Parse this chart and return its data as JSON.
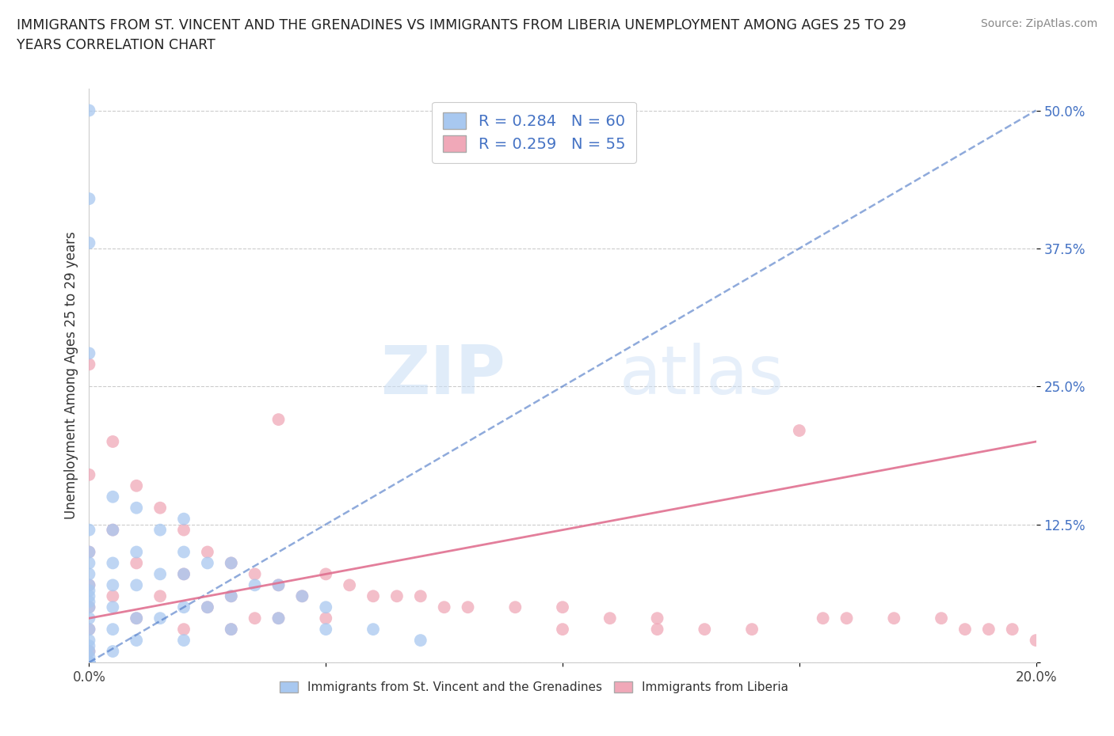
{
  "title_line1": "IMMIGRANTS FROM ST. VINCENT AND THE GRENADINES VS IMMIGRANTS FROM LIBERIA UNEMPLOYMENT AMONG AGES 25 TO 29",
  "title_line2": "YEARS CORRELATION CHART",
  "source": "Source: ZipAtlas.com",
  "ylabel": "Unemployment Among Ages 25 to 29 years",
  "xlim": [
    0.0,
    0.2
  ],
  "ylim": [
    0.0,
    0.52
  ],
  "xticks": [
    0.0,
    0.05,
    0.1,
    0.15,
    0.2
  ],
  "xticklabels": [
    "0.0%",
    "",
    "",
    "",
    "20.0%"
  ],
  "yticks": [
    0.0,
    0.125,
    0.25,
    0.375,
    0.5
  ],
  "yticklabels": [
    "",
    "12.5%",
    "25.0%",
    "37.5%",
    "50.0%"
  ],
  "r_vincent": 0.284,
  "n_vincent": 60,
  "r_liberia": 0.259,
  "n_liberia": 55,
  "color_vincent": "#a8c8f0",
  "color_liberia": "#f0a8b8",
  "line_color_vincent": "#4472c4",
  "line_color_liberia": "#e07090",
  "legend_label_vincent": "Immigrants from St. Vincent and the Grenadines",
  "legend_label_liberia": "Immigrants from Liberia",
  "watermark_zip": "ZIP",
  "watermark_atlas": "atlas",
  "background_color": "#ffffff",
  "grid_color": "#cccccc",
  "vincent_x": [
    0.0,
    0.0,
    0.0,
    0.0,
    0.0,
    0.0,
    0.0,
    0.0,
    0.0,
    0.0,
    0.0,
    0.0,
    0.0,
    0.0,
    0.0,
    0.0,
    0.0,
    0.0,
    0.0,
    0.0,
    0.0,
    0.0,
    0.0,
    0.0,
    0.0,
    0.005,
    0.005,
    0.005,
    0.005,
    0.005,
    0.005,
    0.005,
    0.01,
    0.01,
    0.01,
    0.01,
    0.01,
    0.015,
    0.015,
    0.015,
    0.02,
    0.02,
    0.02,
    0.02,
    0.02,
    0.025,
    0.025,
    0.03,
    0.03,
    0.03,
    0.035,
    0.04,
    0.04,
    0.045,
    0.05,
    0.05,
    0.06,
    0.07,
    0.0,
    0.0
  ],
  "vincent_y": [
    0.5,
    0.42,
    0.38,
    0.28,
    0.12,
    0.1,
    0.09,
    0.08,
    0.07,
    0.065,
    0.06,
    0.055,
    0.05,
    0.04,
    0.03,
    0.02,
    0.015,
    0.01,
    0.005,
    0.0,
    0.0,
    0.0,
    0.0,
    0.0,
    0.0,
    0.15,
    0.12,
    0.09,
    0.07,
    0.05,
    0.03,
    0.01,
    0.14,
    0.1,
    0.07,
    0.04,
    0.02,
    0.12,
    0.08,
    0.04,
    0.13,
    0.1,
    0.08,
    0.05,
    0.02,
    0.09,
    0.05,
    0.09,
    0.06,
    0.03,
    0.07,
    0.07,
    0.04,
    0.06,
    0.05,
    0.03,
    0.03,
    0.02,
    0.0,
    0.0
  ],
  "liberia_x": [
    0.0,
    0.0,
    0.0,
    0.0,
    0.0,
    0.0,
    0.0,
    0.0,
    0.005,
    0.005,
    0.005,
    0.01,
    0.01,
    0.01,
    0.015,
    0.015,
    0.02,
    0.02,
    0.02,
    0.025,
    0.025,
    0.03,
    0.03,
    0.03,
    0.035,
    0.035,
    0.04,
    0.04,
    0.04,
    0.045,
    0.05,
    0.05,
    0.055,
    0.06,
    0.065,
    0.07,
    0.075,
    0.08,
    0.09,
    0.1,
    0.1,
    0.11,
    0.12,
    0.12,
    0.13,
    0.14,
    0.15,
    0.155,
    0.16,
    0.17,
    0.18,
    0.185,
    0.19,
    0.195,
    0.2
  ],
  "liberia_y": [
    0.27,
    0.17,
    0.1,
    0.07,
    0.05,
    0.03,
    0.01,
    0.0,
    0.2,
    0.12,
    0.06,
    0.16,
    0.09,
    0.04,
    0.14,
    0.06,
    0.12,
    0.08,
    0.03,
    0.1,
    0.05,
    0.09,
    0.06,
    0.03,
    0.08,
    0.04,
    0.22,
    0.07,
    0.04,
    0.06,
    0.08,
    0.04,
    0.07,
    0.06,
    0.06,
    0.06,
    0.05,
    0.05,
    0.05,
    0.05,
    0.03,
    0.04,
    0.04,
    0.03,
    0.03,
    0.03,
    0.21,
    0.04,
    0.04,
    0.04,
    0.04,
    0.03,
    0.03,
    0.03,
    0.02
  ],
  "vincent_line_x0": 0.0,
  "vincent_line_y0": 0.0,
  "vincent_line_x1": 0.2,
  "vincent_line_y1": 0.5,
  "liberia_line_x0": 0.0,
  "liberia_line_y0": 0.04,
  "liberia_line_x1": 0.2,
  "liberia_line_y1": 0.2
}
